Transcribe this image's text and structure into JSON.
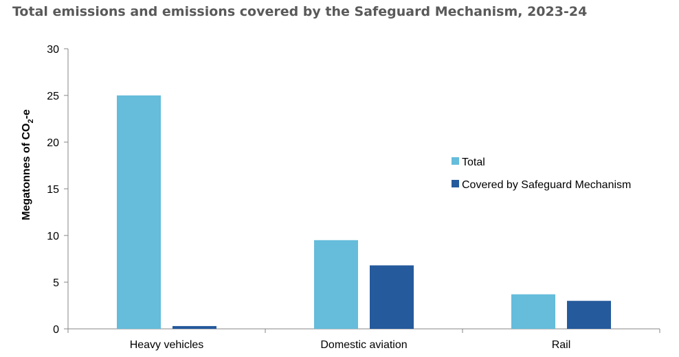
{
  "chart_data": {
    "type": "bar",
    "title": "Total emissions and emissions covered by the Safeguard Mechanism, 2023-24",
    "ylabel_parts": [
      "Megatonnes of CO",
      "2",
      "-e"
    ],
    "xlabel": "",
    "categories": [
      "Heavy vehicles",
      "Domestic aviation",
      "Rail"
    ],
    "series": [
      {
        "name": "Total",
        "color": "#65bcdb",
        "values": [
          25.0,
          9.5,
          3.7
        ]
      },
      {
        "name": "Covered by Safeguard Mechanism",
        "color": "#255a9c",
        "values": [
          0.3,
          6.8,
          3.0
        ]
      }
    ],
    "ylim": [
      0,
      30
    ],
    "yticks": [
      "0",
      "5",
      "10",
      "15",
      "20",
      "25",
      "30"
    ],
    "grid": false,
    "legend_position": "right"
  }
}
